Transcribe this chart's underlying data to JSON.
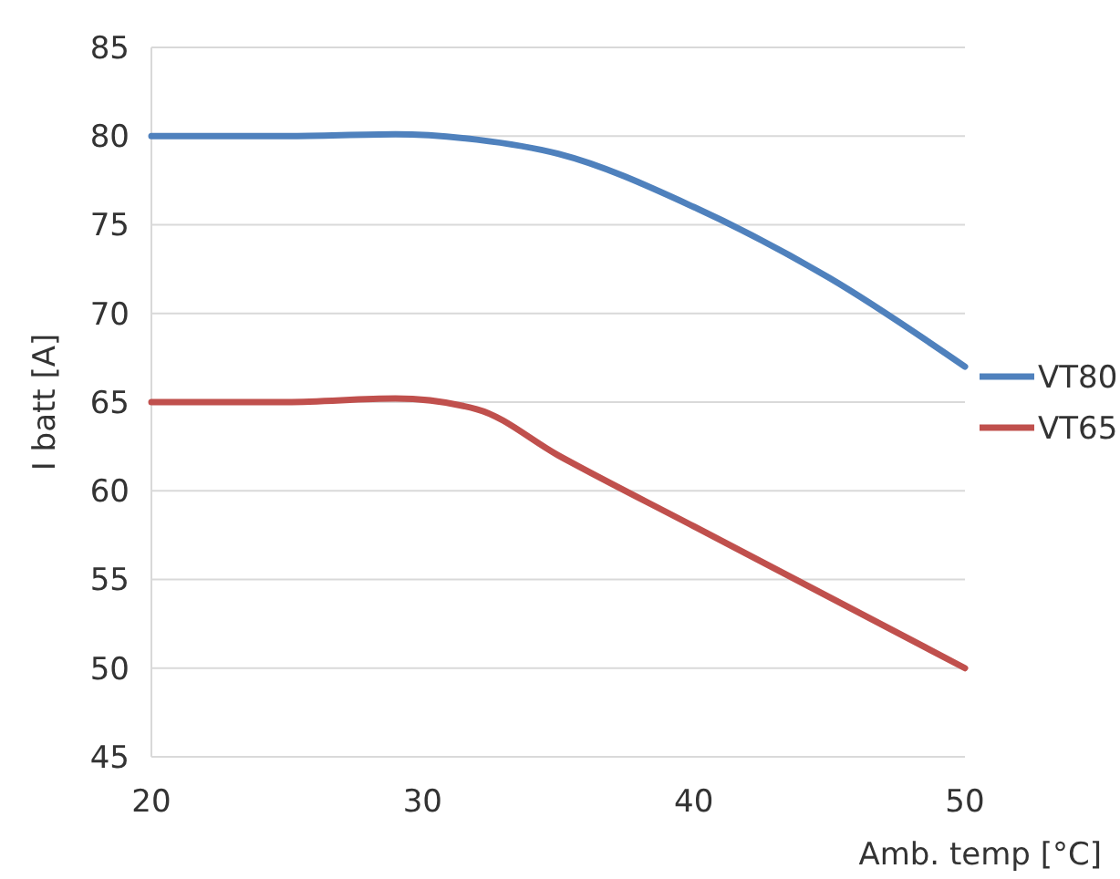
{
  "chart_data": {
    "type": "line",
    "xlabel": "Amb. temp [°C]",
    "ylabel": "I batt [A]",
    "x": [
      20,
      25,
      29,
      32,
      35,
      40,
      45,
      50
    ],
    "series": [
      {
        "name": "VT80",
        "color": "#4f81bd",
        "values": [
          80,
          80,
          80.1,
          79.8,
          79,
          76,
          72,
          67
        ]
      },
      {
        "name": "VT65",
        "color": "#c0504d",
        "values": [
          65,
          65,
          65.2,
          64.6,
          62,
          58,
          54,
          50
        ]
      }
    ],
    "xlim": [
      20,
      50
    ],
    "xticks": [
      20,
      30,
      40,
      50
    ],
    "ylim": [
      45,
      85
    ],
    "yticks": [
      45,
      50,
      55,
      60,
      65,
      70,
      75,
      80,
      85
    ],
    "grid": "y",
    "legend": "right",
    "marker": "none",
    "line_style": "solid"
  }
}
